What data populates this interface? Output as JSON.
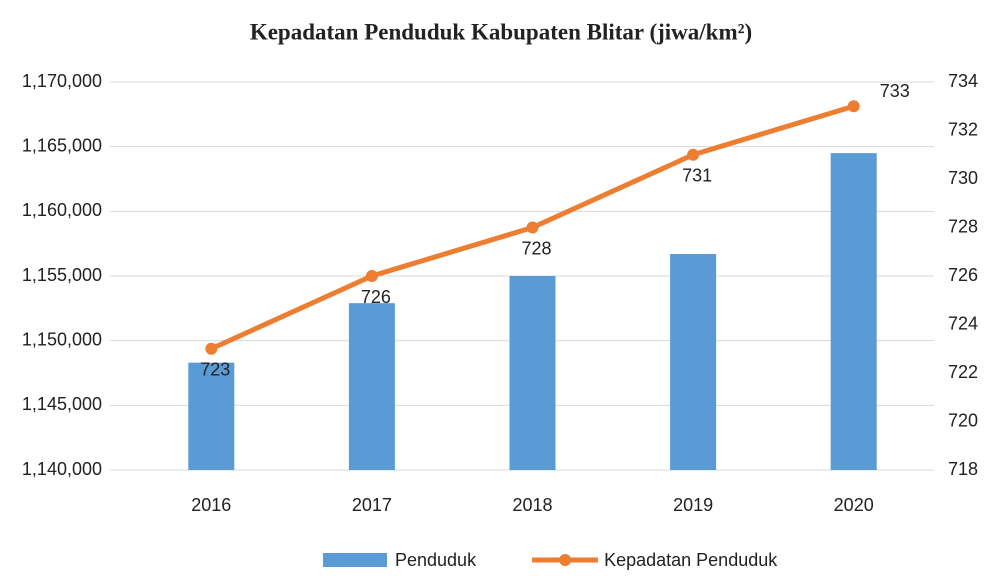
{
  "chart_data": {
    "type": "bar_line",
    "title": "Kepadatan Penduduk Kabupaten Blitar (jiwa/km²)",
    "categories": [
      "2016",
      "2017",
      "2018",
      "2019",
      "2020"
    ],
    "series": [
      {
        "name": "Penduduk",
        "type": "bar",
        "color": "#5b9bd5",
        "axis": "y",
        "values": [
          1148300,
          1152900,
          1155000,
          1156700,
          1164500
        ]
      },
      {
        "name": "Kepadatan Penduduk",
        "type": "line",
        "color": "#ed7d31",
        "axis": "y2",
        "values": [
          723,
          726,
          728,
          731,
          733
        ]
      }
    ],
    "ylim": [
      1140000,
      1170000
    ],
    "yticks": [
      {
        "value": 1140000,
        "label": "1,140,000"
      },
      {
        "value": 1145000,
        "label": "1,145,000"
      },
      {
        "value": 1150000,
        "label": "1,150,000"
      },
      {
        "value": 1155000,
        "label": "1,155,000"
      },
      {
        "value": 1160000,
        "label": "1,160,000"
      },
      {
        "value": 1165000,
        "label": "1,165,000"
      },
      {
        "value": 1170000,
        "label": "1,170,000"
      }
    ],
    "y2lim": [
      718,
      734
    ],
    "y2ticks": [
      718,
      720,
      722,
      724,
      726,
      728,
      730,
      732,
      734
    ],
    "grid": true,
    "legend": "bottom"
  }
}
